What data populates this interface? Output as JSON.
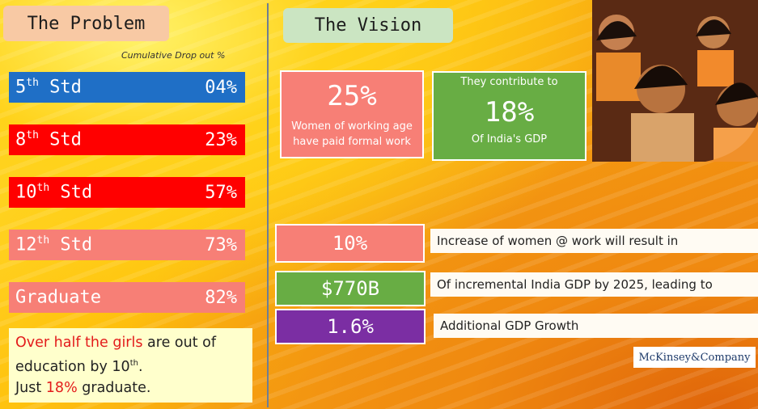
{
  "problem": {
    "title": "The Problem",
    "subtitle": "Cumulative Drop out %",
    "rows": [
      {
        "num": "5",
        "sup": "th",
        "label": " Std",
        "value": "04%",
        "color": "#1f6fc6"
      },
      {
        "num": "8",
        "sup": "th",
        "label": " Std",
        "value": "23%",
        "color": "#ff0000"
      },
      {
        "num": "10",
        "sup": "th",
        "label": " Std",
        "value": "57%",
        "color": "#ff0000"
      },
      {
        "num": "12",
        "sup": "th",
        "label": " Std",
        "value": "73%",
        "color": "#f77f76"
      },
      {
        "num": "Graduate",
        "sup": "",
        "label": "",
        "value": "82%",
        "color": "#f77f76"
      }
    ],
    "note": {
      "part1": "Over half the girls",
      "part2": " are out of education by 10",
      "sup": "th",
      "part3": ".",
      "part4": "Just ",
      "part5": "18%",
      "part6": " graduate."
    }
  },
  "vision": {
    "title": "The Vision",
    "box1": {
      "value": "25%",
      "line1": "Women of working age",
      "line2": "have paid formal work"
    },
    "box2": {
      "top": "They contribute to",
      "value": "18%",
      "bottom": "Of India's GDP"
    },
    "metrics": [
      {
        "value": "10%",
        "caption": "Increase of women @ work will result in"
      },
      {
        "value": "$770B",
        "caption": "Of incremental India GDP by 2025, leading to"
      },
      {
        "value": "1.6%",
        "caption": "Additional GDP Growth"
      }
    ],
    "logo": "McKinsey&Company"
  }
}
